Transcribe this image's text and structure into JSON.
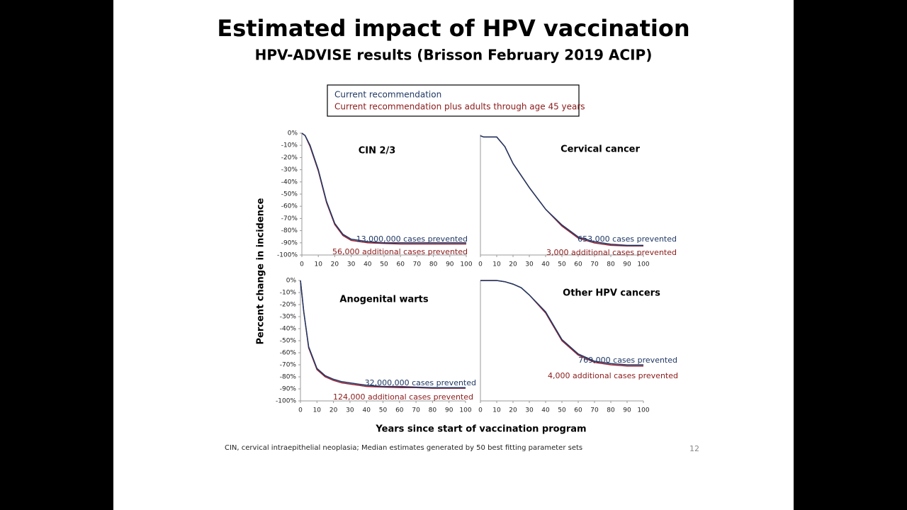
{
  "title": "Estimated impact of HPV vaccination",
  "subtitle": "HPV-ADVISE results (Brisson February 2019 ACIP)",
  "y_label": "Percent change in incidence",
  "x_label": "Years since start of vaccination program",
  "footnote": "CIN, cervical intraepithelial neoplasia; Median estimates generated by 50 best fitting parameter sets",
  "page_number": "12",
  "chart_data": [
    {
      "type": "line",
      "title": "CIN 2/3",
      "x": [
        0,
        2,
        5,
        10,
        15,
        20,
        25,
        30,
        40,
        50,
        60,
        70,
        80,
        90,
        100
      ],
      "series": [
        {
          "name": "Current recommendation plus adults through age 45 years",
          "color": "#9b2335",
          "values": [
            0,
            -2,
            -11,
            -31,
            -57,
            -75,
            -84,
            -88,
            -90,
            -90.5,
            -91,
            -91,
            -91,
            -91,
            -91
          ]
        },
        {
          "name": "Current recommendation",
          "color": "#1f3864",
          "values": [
            0,
            -2,
            -10,
            -30,
            -56,
            -74,
            -83,
            -87,
            -89,
            -90,
            -90,
            -90,
            -90,
            -90,
            -90
          ]
        }
      ],
      "xlim": [
        0,
        100
      ],
      "xticks": [
        0,
        10,
        20,
        30,
        40,
        50,
        60,
        70,
        80,
        90,
        100
      ],
      "ylim": [
        -100,
        0
      ],
      "yticks": [
        {
          "value": 0,
          "label": "0%"
        },
        {
          "value": -10,
          "label": "-10%"
        },
        {
          "value": -20,
          "label": "-20%"
        },
        {
          "value": -30,
          "label": "-30%"
        },
        {
          "value": -40,
          "label": "-40%"
        },
        {
          "value": -50,
          "label": "-50%"
        },
        {
          "value": -60,
          "label": "-60%"
        },
        {
          "value": -70,
          "label": "-70%"
        },
        {
          "value": -80,
          "label": "-80%"
        },
        {
          "value": -90,
          "label": "-90%"
        },
        {
          "value": -100,
          "label": "-100%"
        }
      ],
      "annotations": [
        {
          "text": "13,000,000 cases prevented",
          "color": "#1f3864"
        },
        {
          "text": "56,000 additional cases prevented",
          "color": "#8b1a1a"
        }
      ]
    },
    {
      "type": "line",
      "title": "Cervical cancer",
      "x": [
        0,
        2,
        5,
        10,
        15,
        20,
        25,
        30,
        40,
        50,
        60,
        70,
        80,
        90,
        100
      ],
      "series": [
        {
          "name": "Current recommendation plus adults through age 45 years",
          "color": "#9b2335",
          "values": [
            -1,
            -2,
            -2,
            -2,
            -10,
            -24,
            -34,
            -44,
            -62,
            -76,
            -86,
            -90,
            -92,
            -92.5,
            -92.5
          ]
        },
        {
          "name": "Current recommendation",
          "color": "#1f3864",
          "values": [
            -1,
            -2,
            -2,
            -2,
            -10,
            -24,
            -34,
            -44,
            -62,
            -75,
            -85,
            -89,
            -91,
            -92,
            -92
          ]
        }
      ],
      "xlim": [
        0,
        100
      ],
      "xticks": [
        0,
        10,
        20,
        30,
        40,
        50,
        60,
        70,
        80,
        90,
        100
      ],
      "ylim": [
        -100,
        0
      ],
      "annotations": [
        {
          "text": "653,000 cases prevented",
          "color": "#1f3864"
        },
        {
          "text": "3,000 additional cases prevented",
          "color": "#8b1a1a"
        }
      ]
    },
    {
      "type": "line",
      "title": "Anogenital warts",
      "x": [
        0,
        2,
        5,
        10,
        15,
        20,
        25,
        30,
        40,
        50,
        60,
        70,
        80,
        90,
        100
      ],
      "series": [
        {
          "name": "Current recommendation plus adults through age 45 years",
          "color": "#9b2335",
          "values": [
            0,
            -26,
            -56,
            -74,
            -80,
            -83,
            -85,
            -86,
            -88,
            -88.5,
            -89,
            -89,
            -89.5,
            -89.5,
            -89.5
          ]
        },
        {
          "name": "Current recommendation",
          "color": "#1f3864",
          "values": [
            0,
            -26,
            -55,
            -73,
            -79,
            -82,
            -84,
            -85,
            -87,
            -88,
            -88,
            -88.5,
            -89,
            -89,
            -89
          ]
        }
      ],
      "xlim": [
        0,
        100
      ],
      "xticks": [
        0,
        10,
        20,
        30,
        40,
        50,
        60,
        70,
        80,
        90,
        100
      ],
      "ylim": [
        -100,
        0
      ],
      "yticks": [
        {
          "value": 0,
          "label": "0%"
        },
        {
          "value": -10,
          "label": "-10%"
        },
        {
          "value": -20,
          "label": "-20%"
        },
        {
          "value": -30,
          "label": "-30%"
        },
        {
          "value": -40,
          "label": "-40%"
        },
        {
          "value": -50,
          "label": "-50%"
        },
        {
          "value": -60,
          "label": "-60%"
        },
        {
          "value": -70,
          "label": "-70%"
        },
        {
          "value": -80,
          "label": "-80%"
        },
        {
          "value": -90,
          "label": "-90%"
        },
        {
          "value": -100,
          "label": "-100%"
        }
      ],
      "annotations": [
        {
          "text": "32,000,000 cases prevented",
          "color": "#1f3864"
        },
        {
          "text": "124,000 additional cases prevented",
          "color": "#8b1a1a"
        }
      ]
    },
    {
      "type": "line",
      "title": "Other HPV cancers",
      "x": [
        0,
        2,
        5,
        10,
        15,
        20,
        25,
        30,
        40,
        50,
        60,
        70,
        80,
        90,
        100
      ],
      "series": [
        {
          "name": "Current recommendation plus adults through age 45 years",
          "color": "#9b2335",
          "values": [
            0,
            0,
            0,
            0,
            -1,
            -3,
            -6,
            -12,
            -27,
            -50,
            -62,
            -68,
            -70,
            -71,
            -71
          ]
        },
        {
          "name": "Current recommendation",
          "color": "#1f3864",
          "values": [
            0,
            0,
            0,
            0,
            -1,
            -3,
            -6,
            -12,
            -26,
            -49,
            -61,
            -67,
            -69,
            -70,
            -70
          ]
        }
      ],
      "xlim": [
        0,
        100
      ],
      "xticks": [
        0,
        10,
        20,
        30,
        40,
        50,
        60,
        70,
        80,
        90,
        100
      ],
      "ylim": [
        -100,
        0
      ],
      "annotations": [
        {
          "text": "769,000 cases prevented",
          "color": "#1f3864"
        },
        {
          "text": "4,000 additional cases prevented",
          "color": "#8b1a1a"
        }
      ]
    }
  ]
}
